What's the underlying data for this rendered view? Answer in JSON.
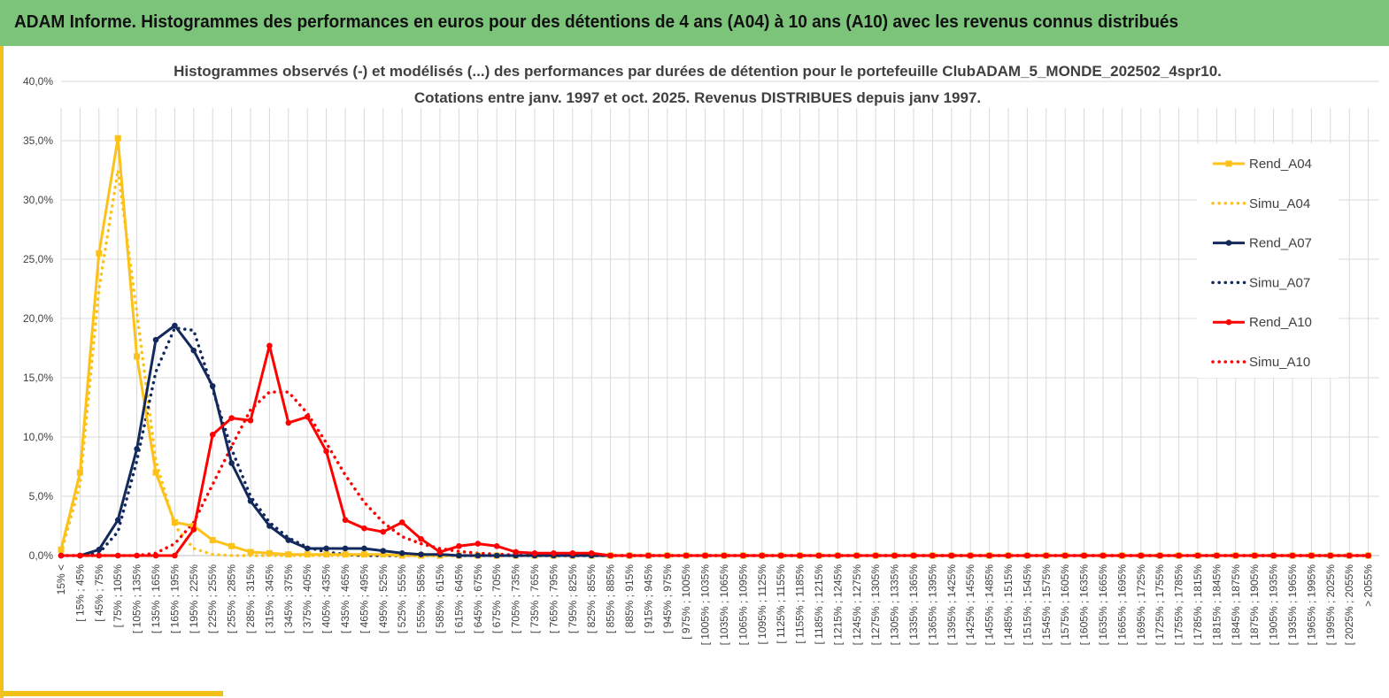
{
  "banner": {
    "title": "ADAM Informe. Histogrammes des performances en euros pour des détentions de 4 ans (A04) à 10 ans (A10) avec les revenus connus distribués"
  },
  "colors": {
    "banner": "#7dc47b",
    "accent": "#f2c21b",
    "A04": "#fcc21a",
    "A07": "#13295c",
    "A10": "#ff0000",
    "grid": "#d9d9d9"
  },
  "chart_data": {
    "type": "line",
    "title_lines": [
      "Histogrammes observés (-) et modélisés (...) des performances par durées de détention pour le portefeuille ClubADAM_5_MONDE_202502_4spr10.",
      "Cotations entre janv. 1997 et oct. 2025. Revenus DISTRIBUES depuis janv 1997."
    ],
    "xlabel": "",
    "ylabel": "",
    "ylim": [
      0,
      40
    ],
    "yticks": [
      "0,0%",
      "5,0%",
      "10,0%",
      "15,0%",
      "20,0%",
      "25,0%",
      "30,0%",
      "35,0%",
      "40,0%"
    ],
    "grid": true,
    "legend_position": "right",
    "categories": [
      "15% <",
      "[ 15% ; 45%",
      "[ 45% ; 75%",
      "[ 75% ; 105%",
      "[ 105% ; 135%",
      "[ 135% ; 165%",
      "[ 165% ; 195%",
      "[ 195% ; 225%",
      "[ 225% ; 255%",
      "[ 255% ; 285%",
      "[ 285% ; 315%",
      "[ 315% ; 345%",
      "[ 345% ; 375%",
      "[ 375% ; 405%",
      "[ 405% ; 435%",
      "[ 435% ; 465%",
      "[ 465% ; 495%",
      "[ 495% ; 525%",
      "[ 525% ; 555%",
      "[ 555% ; 585%",
      "[ 585% ; 615%",
      "[ 615% ; 645%",
      "[ 645% ; 675%",
      "[ 675% ; 705%",
      "[ 705% ; 735%",
      "[ 735% ; 765%",
      "[ 765% ; 795%",
      "[ 795% ; 825%",
      "[ 825% ; 855%",
      "[ 855% ; 885%",
      "[ 885% ; 915%",
      "[ 915% ; 945%",
      "[ 945% ; 975%",
      "[ 975% ; 1005%",
      "[ 1005% ; 1035%",
      "[ 1035% ; 1065%",
      "[ 1065% ; 1095%",
      "[ 1095% ; 1125%",
      "[ 1125% ; 1155%",
      "[ 1155% ; 1185%",
      "[ 1185% ; 1215%",
      "[ 1215% ; 1245%",
      "[ 1245% ; 1275%",
      "[ 1275% ; 1305%",
      "[ 1305% ; 1335%",
      "[ 1335% ; 1365%",
      "[ 1365% ; 1395%",
      "[ 1395% ; 1425%",
      "[ 1425% ; 1455%",
      "[ 1455% ; 1485%",
      "[ 1485% ; 1515%",
      "[ 1515% ; 1545%",
      "[ 1545% ; 1575%",
      "[ 1575% ; 1605%",
      "[ 1605% ; 1635%",
      "[ 1635% ; 1665%",
      "[ 1665% ; 1695%",
      "[ 1695% ; 1725%",
      "[ 1725% ; 1755%",
      "[ 1755% ; 1785%",
      "[ 1785% ; 1815%",
      "[ 1815% ; 1845%",
      "[ 1845% ; 1875%",
      "[ 1875% ; 1905%",
      "[ 1905% ; 1935%",
      "[ 1935% ; 1965%",
      "[ 1965% ; 1995%",
      "[ 1995% ; 2025%",
      "[ 2025% ; 2055%",
      "> 2055%"
    ],
    "series": [
      {
        "name": "Rend_A04",
        "key": "A04",
        "style": "solid",
        "marker": "square",
        "values": [
          0.5,
          7.0,
          25.5,
          35.2,
          16.8,
          7.0,
          2.8,
          2.5,
          1.3,
          0.8,
          0.3,
          0.2,
          0.1,
          0.1,
          0.1,
          0.1,
          0.1,
          0.1,
          0,
          0,
          0,
          0,
          0,
          0,
          0,
          0,
          0,
          0,
          0,
          0,
          0,
          0,
          0,
          0,
          0,
          0,
          0,
          0,
          0,
          0,
          0,
          0,
          0,
          0,
          0,
          0,
          0,
          0,
          0,
          0,
          0,
          0,
          0,
          0,
          0,
          0,
          0,
          0,
          0,
          0,
          0,
          0,
          0,
          0,
          0,
          0,
          0,
          0,
          0,
          0
        ]
      },
      {
        "name": "Simu_A04",
        "key": "A04",
        "style": "dotted",
        "marker": "none",
        "values": [
          0.2,
          6.0,
          22.5,
          32.5,
          20.5,
          8.0,
          2.5,
          0.6,
          0.1,
          0,
          0,
          0,
          0,
          0,
          0,
          0,
          0,
          0,
          0,
          0,
          0,
          0,
          0,
          0,
          0,
          0,
          0,
          0,
          0,
          0,
          0,
          0,
          0,
          0,
          0,
          0,
          0,
          0,
          0,
          0,
          0,
          0,
          0,
          0,
          0,
          0,
          0,
          0,
          0,
          0,
          0,
          0,
          0,
          0,
          0,
          0,
          0,
          0,
          0,
          0,
          0,
          0,
          0,
          0,
          0,
          0,
          0,
          0,
          0,
          0
        ]
      },
      {
        "name": "Rend_A07",
        "key": "A07",
        "style": "solid",
        "marker": "circle",
        "values": [
          0,
          0,
          0.5,
          3.0,
          9.0,
          18.2,
          19.4,
          17.3,
          14.3,
          7.8,
          4.6,
          2.5,
          1.3,
          0.6,
          0.6,
          0.6,
          0.6,
          0.4,
          0.2,
          0.1,
          0.1,
          0,
          0,
          0,
          0,
          0,
          0,
          0,
          0,
          0,
          0,
          0,
          0,
          0,
          0,
          0,
          0,
          0,
          0,
          0,
          0,
          0,
          0,
          0,
          0,
          0,
          0,
          0,
          0,
          0,
          0,
          0,
          0,
          0,
          0,
          0,
          0,
          0,
          0,
          0,
          0,
          0,
          0,
          0,
          0,
          0,
          0,
          0,
          0,
          0
        ]
      },
      {
        "name": "Simu_A07",
        "key": "A07",
        "style": "dotted",
        "marker": "none",
        "values": [
          0,
          0,
          0.2,
          2.0,
          8.0,
          15.5,
          19.2,
          19.0,
          14.0,
          9.0,
          5.0,
          2.8,
          1.5,
          0.7,
          0.3,
          0.1,
          0,
          0,
          0,
          0,
          0,
          0,
          0,
          0,
          0,
          0,
          0,
          0,
          0,
          0,
          0,
          0,
          0,
          0,
          0,
          0,
          0,
          0,
          0,
          0,
          0,
          0,
          0,
          0,
          0,
          0,
          0,
          0,
          0,
          0,
          0,
          0,
          0,
          0,
          0,
          0,
          0,
          0,
          0,
          0,
          0,
          0,
          0,
          0,
          0,
          0,
          0,
          0,
          0,
          0
        ]
      },
      {
        "name": "Rend_A10",
        "key": "A10",
        "style": "solid",
        "marker": "circle",
        "values": [
          0,
          0,
          0,
          0,
          0,
          0,
          0,
          2.2,
          10.2,
          11.6,
          11.4,
          17.7,
          11.2,
          11.7,
          8.8,
          3.0,
          2.3,
          2.0,
          2.8,
          1.4,
          0.3,
          0.8,
          1.0,
          0.8,
          0.3,
          0.2,
          0.2,
          0.2,
          0.2,
          0,
          0,
          0,
          0,
          0,
          0,
          0,
          0,
          0,
          0,
          0,
          0,
          0,
          0,
          0,
          0,
          0,
          0,
          0,
          0,
          0,
          0,
          0,
          0,
          0,
          0,
          0,
          0,
          0,
          0,
          0,
          0,
          0,
          0,
          0,
          0,
          0,
          0,
          0,
          0,
          0
        ]
      },
      {
        "name": "Simu_A10",
        "key": "A10",
        "style": "dotted",
        "marker": "none",
        "values": [
          0,
          0,
          0,
          0,
          0,
          0.2,
          1.0,
          2.8,
          6.0,
          9.2,
          12.3,
          13.8,
          13.8,
          12.0,
          9.5,
          6.8,
          4.5,
          2.8,
          1.6,
          1.0,
          0.6,
          0.35,
          0.2,
          0.12,
          0.05,
          0,
          0,
          0,
          0,
          0,
          0,
          0,
          0,
          0,
          0,
          0,
          0,
          0,
          0,
          0,
          0,
          0,
          0,
          0,
          0,
          0,
          0,
          0,
          0,
          0,
          0,
          0,
          0,
          0,
          0,
          0,
          0,
          0,
          0,
          0,
          0,
          0,
          0,
          0,
          0,
          0,
          0,
          0,
          0,
          0
        ]
      }
    ]
  }
}
